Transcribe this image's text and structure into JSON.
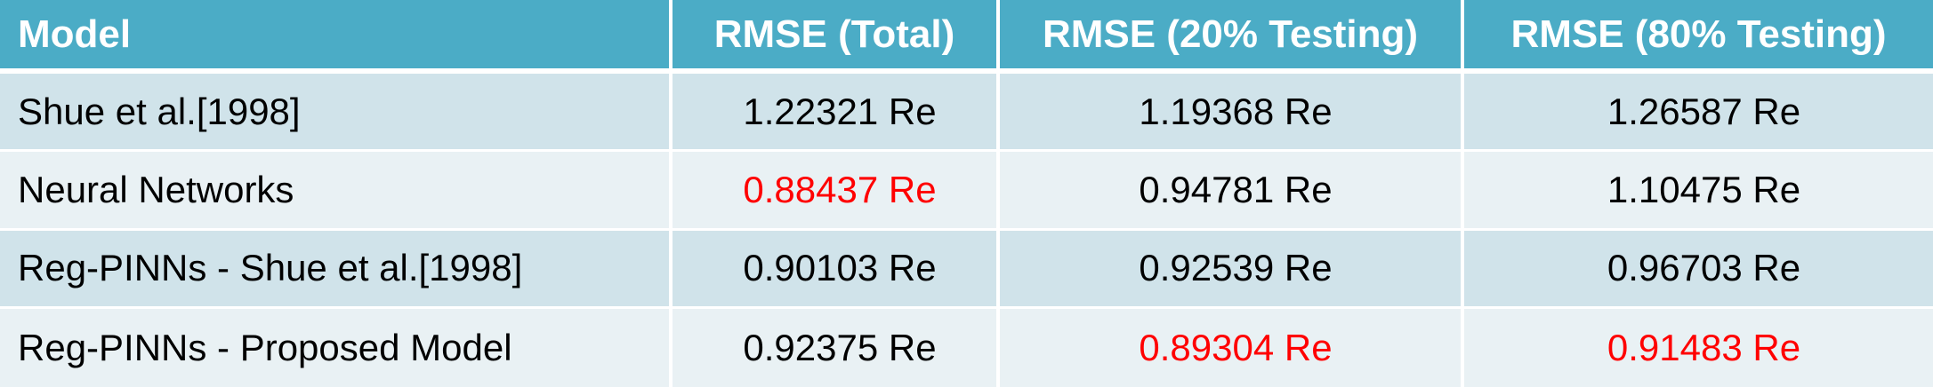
{
  "table": {
    "headers": {
      "model": "Model",
      "total": "RMSE (Total)",
      "testing20": "RMSE (20% Testing)",
      "testing80": "RMSE (80% Testing)"
    },
    "rows": [
      {
        "model": "Shue et al.[1998]",
        "total": "1.22321 Re",
        "testing20": "1.19368 Re",
        "testing80": "1.26587 Re"
      },
      {
        "model": "Neural Networks",
        "total": "0.88437 Re",
        "testing20": "0.94781 Re",
        "testing80": "1.10475 Re"
      },
      {
        "model": "Reg-PINNs - Shue et al.[1998]",
        "total": "0.90103 Re",
        "testing20": "0.92539 Re",
        "testing80": "0.96703 Re"
      },
      {
        "model": "Reg-PINNs - Proposed Model",
        "total": "0.92375 Re",
        "testing20": "0.89304 Re",
        "testing80": "0.91483 Re"
      }
    ]
  },
  "colors": {
    "header_bg": "#4bacc6",
    "header_text": "#ffffff",
    "band_dark": "#d0e3ea",
    "band_light": "#e9f1f4",
    "highlight": "#ff0000"
  }
}
